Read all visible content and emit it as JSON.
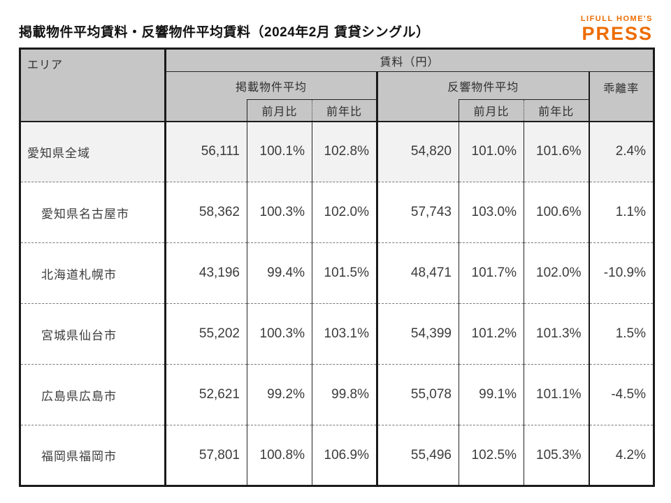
{
  "page": {
    "logo": {
      "top": "LIFULL HOME'S",
      "bottom": "PRESS"
    },
    "colors": {
      "accent_orange": "#ED6C00",
      "header_bg": "#C6C6C6",
      "first_row_bg": "#F2F2F2",
      "border": "#1A1A1A"
    }
  },
  "chart_data": {
    "type": "table",
    "title": "掲載物件平均賃料・反響物件平均賃料（2024年2月 賃貸シングル）",
    "header": {
      "area": "エリア",
      "rent_unit_group": "賃料（円）",
      "listed_group": "掲載物件平均",
      "response_group": "反響物件平均",
      "deviation": "乖離率",
      "mom": "前月比",
      "yoy": "前年比"
    },
    "rows": [
      {
        "area": "愛知県全域",
        "listed_avg": "56,111",
        "listed_mom": "100.1%",
        "listed_yoy": "102.8%",
        "response_avg": "54,820",
        "response_mom": "101.0%",
        "response_yoy": "101.6%",
        "deviation": "2.4%"
      },
      {
        "area": "愛知県名古屋市",
        "listed_avg": "58,362",
        "listed_mom": "100.3%",
        "listed_yoy": "102.0%",
        "response_avg": "57,743",
        "response_mom": "103.0%",
        "response_yoy": "100.6%",
        "deviation": "1.1%"
      },
      {
        "area": "北海道札幌市",
        "listed_avg": "43,196",
        "listed_mom": "99.4%",
        "listed_yoy": "101.5%",
        "response_avg": "48,471",
        "response_mom": "101.7%",
        "response_yoy": "102.0%",
        "deviation": "-10.9%"
      },
      {
        "area": "宮城県仙台市",
        "listed_avg": "55,202",
        "listed_mom": "100.3%",
        "listed_yoy": "103.1%",
        "response_avg": "54,399",
        "response_mom": "101.2%",
        "response_yoy": "101.3%",
        "deviation": "1.5%"
      },
      {
        "area": "広島県広島市",
        "listed_avg": "52,621",
        "listed_mom": "99.2%",
        "listed_yoy": "99.8%",
        "response_avg": "55,078",
        "response_mom": "99.1%",
        "response_yoy": "101.1%",
        "deviation": "-4.5%"
      },
      {
        "area": "福岡県福岡市",
        "listed_avg": "57,801",
        "listed_mom": "100.8%",
        "listed_yoy": "106.9%",
        "response_avg": "55,496",
        "response_mom": "102.5%",
        "response_yoy": "105.3%",
        "deviation": "4.2%"
      }
    ]
  }
}
